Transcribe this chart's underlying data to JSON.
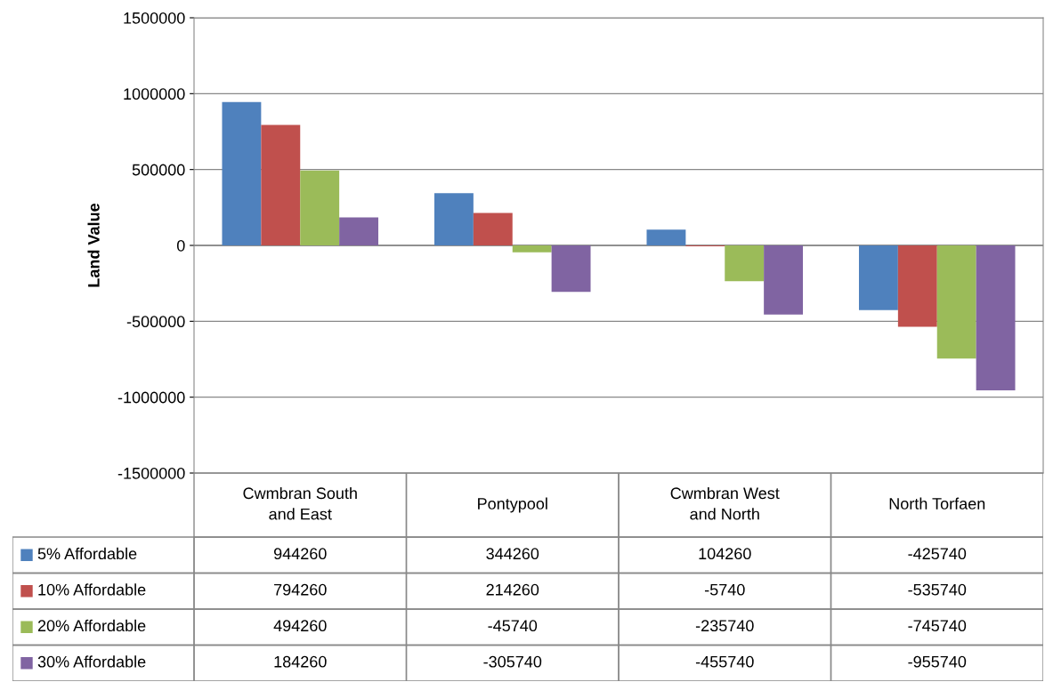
{
  "chart_data": {
    "type": "bar",
    "ylabel": "Land Value",
    "categories": [
      "Cwmbran South\nand East",
      "Pontypool",
      "Cwmbran West\nand North",
      "North Torfaen"
    ],
    "series": [
      {
        "name": "5% Affordable",
        "color": "#4f81bd",
        "values": [
          944260,
          344260,
          104260,
          -425740
        ]
      },
      {
        "name": "10% Affordable",
        "color": "#c0504d",
        "values": [
          794260,
          214260,
          -5740,
          -535740
        ]
      },
      {
        "name": "20% Affordable",
        "color": "#9bbb59",
        "values": [
          494260,
          -45740,
          -235740,
          -745740
        ]
      },
      {
        "name": "30% Affordable",
        "color": "#8064a2",
        "values": [
          184260,
          -305740,
          -455740,
          -955740
        ]
      }
    ],
    "ylim": [
      -1500000,
      1500000
    ],
    "yticks": [
      -1500000,
      -1000000,
      -500000,
      0,
      500000,
      1000000,
      1500000
    ],
    "grid": "y",
    "legend": "bottom",
    "data_labels": true
  }
}
